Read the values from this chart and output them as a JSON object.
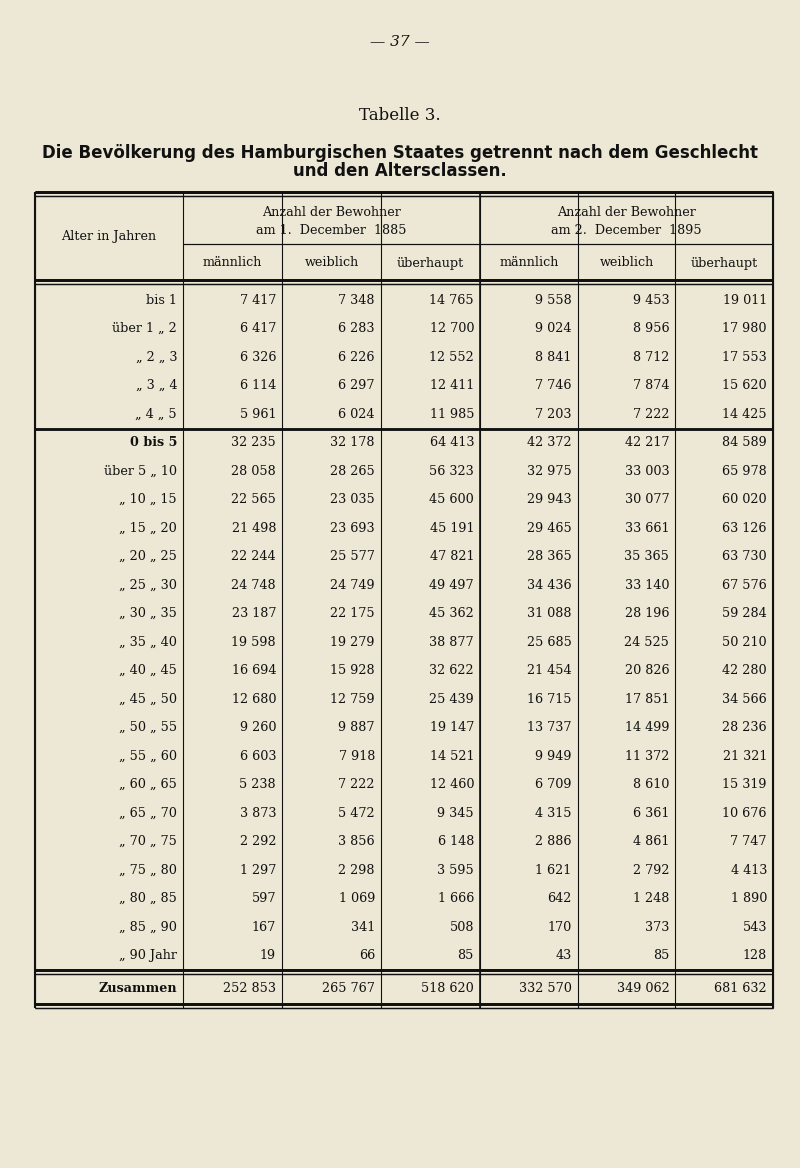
{
  "page_number": "37",
  "tabelle": "Tabelle 3.",
  "title_line1": "Die Bevölkerung des Hamburgischen Staates getrennt nach dem Geschlecht",
  "title_line2": "und den Altersclassen.",
  "col_header_left": "Alter in Jahren",
  "group1_header1": "Anzahl der Bewohner",
  "group1_header2": "am 1.  December  1885",
  "group2_header1": "Anzahl der Bewohner",
  "group2_header2": "am 2.  December  1895",
  "sub_headers": [
    "männlich",
    "weiblich",
    "überhaupt",
    "männlich",
    "weiblich",
    "überhaupt"
  ],
  "rows_section1": [
    [
      "bis 1",
      "7 417",
      "7 348",
      "14 765",
      "9 558",
      "9 453",
      "19 011"
    ],
    [
      "über 1 „ 2",
      "6 417",
      "6 283",
      "12 700",
      "9 024",
      "8 956",
      "17 980"
    ],
    [
      "„ 2 „ 3",
      "6 326",
      "6 226",
      "12 552",
      "8 841",
      "8 712",
      "17 553"
    ],
    [
      "„ 3 „ 4",
      "6 114",
      "6 297",
      "12 411",
      "7 746",
      "7 874",
      "15 620"
    ],
    [
      "„ 4 „ 5",
      "5 961",
      "6 024",
      "11 985",
      "7 203",
      "7 222",
      "14 425"
    ]
  ],
  "rows_section2": [
    [
      "0 bis 5",
      "32 235",
      "32 178",
      "64 413",
      "42 372",
      "42 217",
      "84 589"
    ],
    [
      "über 5 „ 10",
      "28 058",
      "28 265",
      "56 323",
      "32 975",
      "33 003",
      "65 978"
    ],
    [
      "„ 10 „ 15",
      "22 565",
      "23 035",
      "45 600",
      "29 943",
      "30 077",
      "60 020"
    ],
    [
      "„ 15 „ 20",
      "21 498",
      "23 693",
      "45 191",
      "29 465",
      "33 661",
      "63 126"
    ],
    [
      "„ 20 „ 25",
      "22 244",
      "25 577",
      "47 821",
      "28 365",
      "35 365",
      "63 730"
    ],
    [
      "„ 25 „ 30",
      "24 748",
      "24 749",
      "49 497",
      "34 436",
      "33 140",
      "67 576"
    ],
    [
      "„ 30 „ 35",
      "23 187",
      "22 175",
      "45 362",
      "31 088",
      "28 196",
      "59 284"
    ],
    [
      "„ 35 „ 40",
      "19 598",
      "19 279",
      "38 877",
      "25 685",
      "24 525",
      "50 210"
    ],
    [
      "„ 40 „ 45",
      "16 694",
      "15 928",
      "32 622",
      "21 454",
      "20 826",
      "42 280"
    ],
    [
      "„ 45 „ 50",
      "12 680",
      "12 759",
      "25 439",
      "16 715",
      "17 851",
      "34 566"
    ],
    [
      "„ 50 „ 55",
      "9 260",
      "9 887",
      "19 147",
      "13 737",
      "14 499",
      "28 236"
    ],
    [
      "„ 55 „ 60",
      "6 603",
      "7 918",
      "14 521",
      "9 949",
      "11 372",
      "21 321"
    ],
    [
      "„ 60 „ 65",
      "5 238",
      "7 222",
      "12 460",
      "6 709",
      "8 610",
      "15 319"
    ],
    [
      "„ 65 „ 70",
      "3 873",
      "5 472",
      "9 345",
      "4 315",
      "6 361",
      "10 676"
    ],
    [
      "„ 70 „ 75",
      "2 292",
      "3 856",
      "6 148",
      "2 886",
      "4 861",
      "7 747"
    ],
    [
      "„ 75 „ 80",
      "1 297",
      "2 298",
      "3 595",
      "1 621",
      "2 792",
      "4 413"
    ],
    [
      "„ 80 „ 85",
      "597",
      "1 069",
      "1 666",
      "642",
      "1 248",
      "1 890"
    ],
    [
      "„ 85 „ 90",
      "167",
      "341",
      "508",
      "170",
      "373",
      "543"
    ],
    [
      "„ 90 Jahr",
      "19",
      "66",
      "85",
      "43",
      "85",
      "128"
    ]
  ],
  "row_zusammen": [
    "Zusammen",
    "252 853",
    "265 767",
    "518 620",
    "332 570",
    "349 062",
    "681 632"
  ],
  "bg_color": "#ede8d5",
  "text_color": "#111111",
  "line_color": "#111111"
}
